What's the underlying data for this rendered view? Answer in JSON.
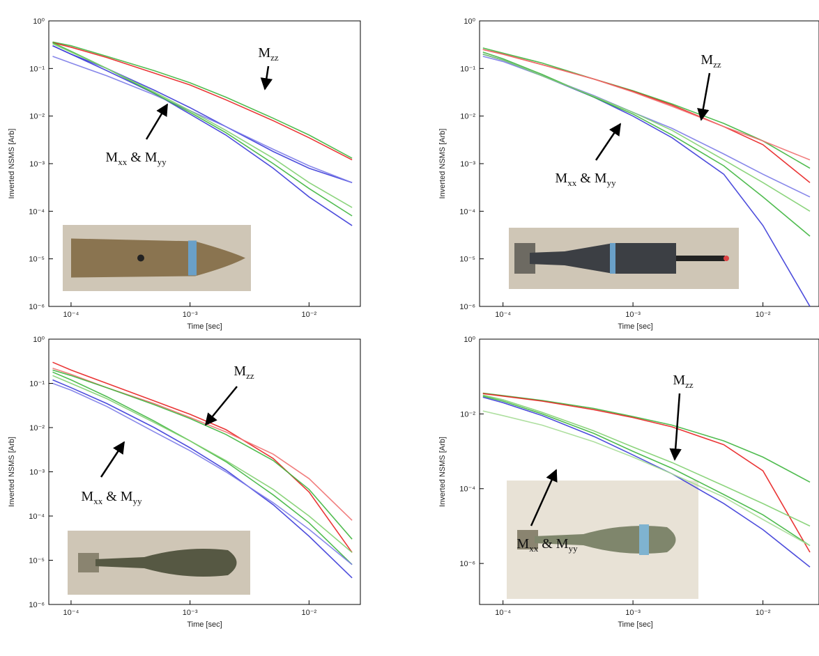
{
  "chart_data": [
    {
      "type": "line",
      "xscale": "log",
      "yscale": "log",
      "x_label": "Time [sec]",
      "y_label": "Inverted NSMS [Arb]",
      "x": [
        7e-05,
        0.0001,
        0.0002,
        0.0005,
        0.001,
        0.002,
        0.005,
        0.01,
        0.023
      ],
      "xlim": [
        6.5e-05,
        0.027
      ],
      "ylim": [
        1e-06,
        1
      ],
      "xticks": [
        {
          "value": 0.0001,
          "label": "10⁻⁴"
        },
        {
          "value": 0.001,
          "label": "10⁻³"
        },
        {
          "value": 0.01,
          "label": "10⁻²"
        }
      ],
      "yticks": [
        {
          "value": 1,
          "label": "10⁰"
        },
        {
          "value": 0.1,
          "label": "10⁻¹"
        },
        {
          "value": 0.01,
          "label": "10⁻²"
        },
        {
          "value": 0.001,
          "label": "10⁻³"
        },
        {
          "value": 0.0001,
          "label": "10⁻⁴"
        },
        {
          "value": 1e-05,
          "label": "10⁻⁵"
        },
        {
          "value": 1e-06,
          "label": "10⁻⁶"
        }
      ],
      "series": [
        {
          "color": "#3db53d",
          "values": [
            0.36,
            0.3,
            0.18,
            0.09,
            0.05,
            0.025,
            0.009,
            0.004,
            0.0013
          ]
        },
        {
          "color": "#e82020",
          "values": [
            0.35,
            0.28,
            0.17,
            0.08,
            0.045,
            0.022,
            0.008,
            0.0035,
            0.0012
          ]
        },
        {
          "color": "#3a3ad8",
          "values": [
            0.3,
            0.2,
            0.1,
            0.035,
            0.015,
            0.006,
            0.0018,
            0.0008,
            0.0004
          ]
        },
        {
          "color": "#3a3ad8",
          "values": [
            0.3,
            0.2,
            0.09,
            0.03,
            0.011,
            0.004,
            0.0008,
            0.0002,
            5e-05
          ]
        },
        {
          "color": "#7a7ae8",
          "values": [
            0.18,
            0.13,
            0.07,
            0.028,
            0.013,
            0.006,
            0.002,
            0.0009,
            0.0004
          ]
        },
        {
          "color": "#3db53d",
          "values": [
            0.35,
            0.23,
            0.1,
            0.03,
            0.012,
            0.0045,
            0.001,
            0.0003,
            8e-05
          ]
        },
        {
          "color": "#7fcf6f",
          "values": [
            0.33,
            0.22,
            0.1,
            0.032,
            0.013,
            0.005,
            0.0013,
            0.0004,
            0.00012
          ]
        }
      ],
      "annotations": [
        {
          "parts": [
            {
              "text": "M"
            },
            {
              "text": "zz",
              "sub": true
            }
          ]
        },
        {
          "parts": [
            {
              "text": "M"
            },
            {
              "text": "xx",
              "sub": true
            },
            {
              "text": " & M"
            },
            {
              "text": "yy",
              "sub": true
            }
          ]
        }
      ]
    },
    {
      "type": "line",
      "xscale": "log",
      "yscale": "log",
      "x_label": "Time [sec]",
      "y_label": "Inverted NSMS [Arb]",
      "x": [
        7e-05,
        0.0001,
        0.0002,
        0.0005,
        0.001,
        0.002,
        0.005,
        0.01,
        0.023
      ],
      "xlim": [
        6.6e-05,
        0.027
      ],
      "ylim": [
        1e-06,
        1
      ],
      "xticks": [
        {
          "value": 0.0001,
          "label": "10⁻⁴"
        },
        {
          "value": 0.001,
          "label": "10⁻³"
        },
        {
          "value": 0.01,
          "label": "10⁻²"
        }
      ],
      "yticks": [
        {
          "value": 1,
          "label": "10⁰"
        },
        {
          "value": 0.1,
          "label": "10⁻¹"
        },
        {
          "value": 0.01,
          "label": "10⁻²"
        },
        {
          "value": 0.001,
          "label": "10⁻³"
        },
        {
          "value": 0.0001,
          "label": "10⁻⁴"
        },
        {
          "value": 1e-05,
          "label": "10⁻⁵"
        },
        {
          "value": 1e-06,
          "label": "10⁻⁶"
        }
      ],
      "series": [
        {
          "color": "#3db53d",
          "values": [
            0.27,
            0.21,
            0.13,
            0.06,
            0.034,
            0.018,
            0.007,
            0.003,
            0.0008
          ]
        },
        {
          "color": "#e82020",
          "values": [
            0.25,
            0.2,
            0.12,
            0.06,
            0.033,
            0.017,
            0.006,
            0.0025,
            0.0004
          ]
        },
        {
          "color": "#f07070",
          "values": [
            0.25,
            0.2,
            0.12,
            0.06,
            0.032,
            0.016,
            0.006,
            0.003,
            0.0012
          ]
        },
        {
          "color": "#3a3ad8",
          "values": [
            0.2,
            0.15,
            0.07,
            0.025,
            0.01,
            0.0035,
            0.0006,
            5e-05,
            1e-06
          ]
        },
        {
          "color": "#7a7ae8",
          "values": [
            0.18,
            0.14,
            0.07,
            0.027,
            0.012,
            0.0055,
            0.0016,
            0.0006,
            0.0002
          ]
        },
        {
          "color": "#3db53d",
          "values": [
            0.22,
            0.16,
            0.075,
            0.025,
            0.011,
            0.004,
            0.0009,
            0.0002,
            3e-05
          ]
        },
        {
          "color": "#7fcf6f",
          "values": [
            0.2,
            0.15,
            0.07,
            0.026,
            0.012,
            0.005,
            0.0012,
            0.0004,
            0.0001
          ]
        }
      ],
      "annotations": [
        {
          "parts": [
            {
              "text": "M"
            },
            {
              "text": "zz",
              "sub": true
            }
          ]
        },
        {
          "parts": [
            {
              "text": "M"
            },
            {
              "text": "xx",
              "sub": true
            },
            {
              "text": " & M"
            },
            {
              "text": "yy",
              "sub": true
            }
          ]
        }
      ]
    },
    {
      "type": "line",
      "xscale": "log",
      "yscale": "log",
      "x_label": "Time [sec]",
      "y_label": "Inverted NSMS [Arb]",
      "x": [
        7e-05,
        0.0001,
        0.0002,
        0.0005,
        0.001,
        0.002,
        0.005,
        0.01,
        0.023
      ],
      "xlim": [
        6.5e-05,
        0.027
      ],
      "ylim": [
        1e-06,
        1
      ],
      "xticks": [
        {
          "value": 0.0001,
          "label": "10⁻⁴"
        },
        {
          "value": 0.001,
          "label": "10⁻³"
        },
        {
          "value": 0.01,
          "label": "10⁻²"
        }
      ],
      "yticks": [
        {
          "value": 1,
          "label": "10⁰"
        },
        {
          "value": 0.1,
          "label": "10⁻¹"
        },
        {
          "value": 0.01,
          "label": "10⁻²"
        },
        {
          "value": 0.001,
          "label": "10⁻³"
        },
        {
          "value": 0.0001,
          "label": "10⁻⁴"
        },
        {
          "value": 1e-05,
          "label": "10⁻⁵"
        },
        {
          "value": 1e-06,
          "label": "10⁻⁶"
        }
      ],
      "series": [
        {
          "color": "#e82020",
          "values": [
            0.3,
            0.2,
            0.1,
            0.04,
            0.02,
            0.009,
            0.002,
            0.00035,
            1.5e-05
          ]
        },
        {
          "color": "#f07070",
          "values": [
            0.22,
            0.16,
            0.08,
            0.035,
            0.017,
            0.008,
            0.0025,
            0.0007,
            8e-05
          ]
        },
        {
          "color": "#3db53d",
          "values": [
            0.2,
            0.15,
            0.08,
            0.033,
            0.016,
            0.007,
            0.0018,
            0.0004,
            3e-05
          ]
        },
        {
          "color": "#3a3ad8",
          "values": [
            0.12,
            0.08,
            0.035,
            0.01,
            0.0035,
            0.0011,
            0.00018,
            3.5e-05,
            4e-06
          ]
        },
        {
          "color": "#3db53d",
          "values": [
            0.18,
            0.12,
            0.05,
            0.014,
            0.005,
            0.0017,
            0.0003,
            7e-05,
            8e-06
          ]
        },
        {
          "color": "#7fcf6f",
          "values": [
            0.15,
            0.1,
            0.045,
            0.013,
            0.005,
            0.0018,
            0.0004,
            0.0001,
            1.5e-05
          ]
        },
        {
          "color": "#7a7ae8",
          "values": [
            0.1,
            0.07,
            0.03,
            0.008,
            0.003,
            0.001,
            0.0002,
            5e-05,
            8e-06
          ]
        }
      ],
      "annotations": [
        {
          "parts": [
            {
              "text": "M"
            },
            {
              "text": "zz",
              "sub": true
            }
          ]
        },
        {
          "parts": [
            {
              "text": "M"
            },
            {
              "text": "xx",
              "sub": true
            },
            {
              "text": " & M"
            },
            {
              "text": "yy",
              "sub": true
            }
          ]
        }
      ]
    },
    {
      "type": "line",
      "xscale": "log",
      "yscale": "log",
      "x_label": "Time [sec]",
      "y_label": "Inverted NSMS [Arb]",
      "x": [
        7e-05,
        0.0001,
        0.0002,
        0.0005,
        0.001,
        0.002,
        0.005,
        0.01,
        0.023
      ],
      "xlim": [
        6.6e-05,
        0.027
      ],
      "ylim": [
        8e-08,
        1
      ],
      "xticks": [
        {
          "value": 0.0001,
          "label": "10⁻⁴"
        },
        {
          "value": 0.001,
          "label": "10⁻³"
        },
        {
          "value": 0.01,
          "label": "10⁻²"
        }
      ],
      "yticks": [
        {
          "value": 1,
          "label": "10⁰"
        },
        {
          "value": 0.01,
          "label": "10⁻²"
        },
        {
          "value": 0.0001,
          "label": "10⁻⁴"
        },
        {
          "value": 1e-06,
          "label": "10⁻⁶"
        }
      ],
      "series": [
        {
          "color": "#3db53d",
          "values": [
            0.036,
            0.031,
            0.023,
            0.014,
            0.0085,
            0.005,
            0.0019,
            0.0007,
            0.00015
          ]
        },
        {
          "color": "#e82020",
          "values": [
            0.035,
            0.03,
            0.022,
            0.013,
            0.008,
            0.0045,
            0.0015,
            0.0003,
            2e-06
          ]
        },
        {
          "color": "#3a3ad8",
          "values": [
            0.028,
            0.02,
            0.009,
            0.0025,
            0.0008,
            0.00025,
            4e-05,
            8e-06,
            8e-07
          ]
        },
        {
          "color": "#3db53d",
          "values": [
            0.03,
            0.022,
            0.01,
            0.003,
            0.001,
            0.00035,
            7e-05,
            2e-05,
            3e-06
          ]
        },
        {
          "color": "#7fcf6f",
          "values": [
            0.032,
            0.024,
            0.011,
            0.0035,
            0.0013,
            0.0005,
            0.00012,
            4e-05,
            1e-05
          ]
        },
        {
          "color": "#a5dc95",
          "values": [
            0.012,
            0.009,
            0.005,
            0.0018,
            0.0007,
            0.00025,
            6e-05,
            1.5e-05,
            3e-06
          ]
        }
      ],
      "annotations": [
        {
          "parts": [
            {
              "text": "M"
            },
            {
              "text": "zz",
              "sub": true
            }
          ]
        },
        {
          "parts": [
            {
              "text": "M"
            },
            {
              "text": "xx",
              "sub": true
            },
            {
              "text": " & M"
            },
            {
              "text": "yy",
              "sub": true
            }
          ]
        }
      ]
    }
  ]
}
